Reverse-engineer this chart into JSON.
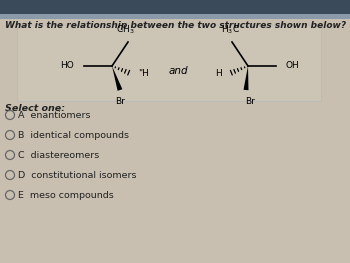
{
  "bg_top_bar": "#3a4a5a",
  "bg_main": "#c8bfb0",
  "bg_struct_box": "#d8d0c0",
  "question": "What is the relationship between the two structures shown below?",
  "select_one": "Select one:",
  "options": [
    {
      "label": "A",
      "text": "enantiomers"
    },
    {
      "label": "B",
      "text": "identical compounds"
    },
    {
      "label": "C",
      "text": "diastereomers"
    },
    {
      "label": "D",
      "text": "constitutional isomers"
    },
    {
      "label": "E",
      "text": "meso compounds"
    }
  ],
  "question_fontsize": 6.5,
  "option_fontsize": 6.8,
  "text_color": "#222222",
  "struct_box_color": "#ccc5b5",
  "struct_box_edge": "#bbbbbb",
  "top_bar_height": 14
}
